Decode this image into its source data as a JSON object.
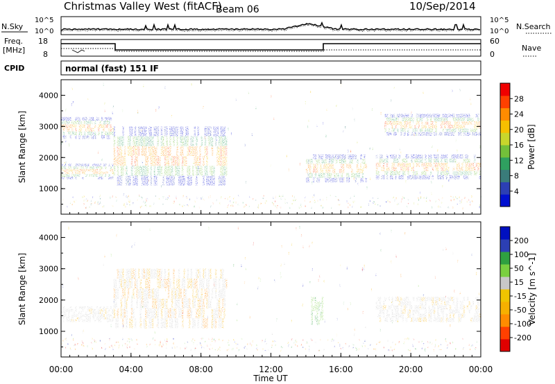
{
  "header": {
    "title": "Christmas Valley West (fitACF)",
    "beam": "Beam 06",
    "date": "10/Sep/2014"
  },
  "strips": {
    "nsky_label": "N.Sky",
    "nsearch_label": "N.Search",
    "noise_ticks": [
      "10^5",
      "10^0"
    ],
    "freq_label_line1": "Freq.",
    "freq_label_line2": "[MHz]",
    "freq_ticks": [
      "18",
      "8"
    ],
    "nave_label": "Nave",
    "nave_ticks": [
      "60",
      "0"
    ],
    "cpid_label": "CPID",
    "cpid_value": "normal (fast) 151 IF"
  },
  "chart_data": [
    {
      "type": "heatmap",
      "title": "",
      "xlabel": "",
      "ylabel": "Slant Range [km]",
      "xlim": [
        0,
        24
      ],
      "ylim": [
        180,
        4500
      ],
      "x_ticks": [
        0,
        4,
        8,
        12,
        16,
        20,
        24
      ],
      "y_ticks": [
        1000,
        2000,
        3000,
        4000
      ],
      "colorbar": {
        "label": "Power [dB]",
        "ticks": [
          "28",
          "24",
          "20",
          "16",
          "12",
          "8",
          "4"
        ],
        "colors": [
          "#0010d0",
          "#2c3fb4",
          "#3a7c7a",
          "#2fa060",
          "#73c03a",
          "#c8d62c",
          "#f6c000",
          "#ff8c00",
          "#ff4000",
          "#f00000"
        ]
      },
      "echo_bands": [
        {
          "t_start": 0,
          "t_end": 3,
          "range_km": [
            1300,
            1800
          ]
        },
        {
          "t_start": 3,
          "t_end": 9.5,
          "range_km": [
            1100,
            3000
          ]
        },
        {
          "t_start": 0,
          "t_end": 3,
          "range_km": [
            2600,
            3300
          ]
        },
        {
          "t_start": 14,
          "t_end": 17.5,
          "range_km": [
            1200,
            2100
          ]
        },
        {
          "t_start": 18,
          "t_end": 24,
          "range_km": [
            1300,
            2100
          ]
        },
        {
          "t_start": 18.5,
          "t_end": 24,
          "range_km": [
            2700,
            3400
          ]
        }
      ]
    },
    {
      "type": "heatmap",
      "title": "",
      "xlabel": "Time UT",
      "ylabel": "Slant Range [km]",
      "xlim": [
        0,
        24
      ],
      "ylim": [
        180,
        4500
      ],
      "x_ticks": [
        0,
        4,
        8,
        12,
        16,
        20,
        24
      ],
      "x_tick_labels": [
        "00:00",
        "04:00",
        "08:00",
        "12:00",
        "16:00",
        "20:00",
        "00:00"
      ],
      "y_ticks": [
        1000,
        2000,
        3000,
        4000
      ],
      "colorbar": {
        "label": "Velocity [m s^-1]",
        "ticks": [
          "200",
          "100",
          "50",
          "15",
          "-15",
          "-50",
          "-100",
          "-200"
        ],
        "colors": [
          "#e00000",
          "#ff4000",
          "#ff8c00",
          "#f6b000",
          "#f0c400",
          "#c8c8c8",
          "#7ad040",
          "#2fa040",
          "#2c3fb4",
          "#0010c0"
        ]
      },
      "echo_bands": [
        {
          "t_start": 0,
          "t_end": 3,
          "range_km": [
            1300,
            1800
          ],
          "velocity": "ground scatter"
        },
        {
          "t_start": 3,
          "t_end": 9.5,
          "range_km": [
            1100,
            3000
          ],
          "velocity": "ground scatter / negative"
        },
        {
          "t_start": 14.3,
          "t_end": 15,
          "range_km": [
            1200,
            2100
          ],
          "velocity": "positive"
        },
        {
          "t_start": 18,
          "t_end": 24,
          "range_km": [
            1300,
            2100
          ],
          "velocity": "ground scatter"
        }
      ]
    }
  ]
}
